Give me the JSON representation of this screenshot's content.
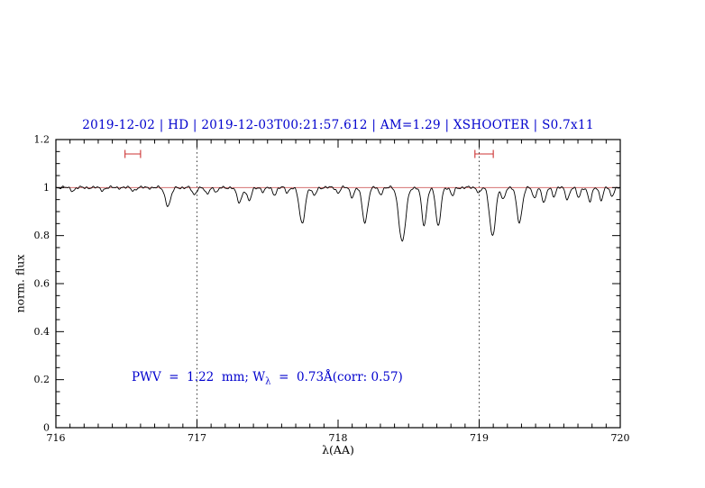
{
  "colors": {
    "accent_blue": "#0000cd",
    "continuum_red": "#cd5c5c",
    "marker_red": "#cc3333",
    "spectrum_black": "#000000",
    "frame_black": "#000000"
  },
  "chart_data": {
    "type": "line",
    "title": "2019-12-02 | HD | 2019-12-03T00:21:57.612 | AM=1.29 | XSHOOTER | S0.7x11",
    "xlabel": "λ(AA)",
    "ylabel": "norm. flux",
    "xlim": [
      716,
      720
    ],
    "ylim": [
      0,
      1.2
    ],
    "grid": false,
    "legend": "none",
    "x_ticks": [
      716,
      717,
      718,
      719,
      720
    ],
    "x_tick_labels": [
      "716",
      "717",
      "718",
      "719",
      "720"
    ],
    "x_minor_step": 0.1,
    "y_ticks": [
      0,
      0.2,
      0.4,
      0.6,
      0.8,
      1,
      1.2
    ],
    "y_tick_labels": [
      "0",
      "0.2",
      "0.4",
      "0.6",
      "0.8",
      "1",
      "1.2"
    ],
    "y_minor_step": 0.05,
    "dotted_vlines": [
      717,
      719
    ],
    "continuum_y": 1.0,
    "interval_markers": [
      {
        "x1": 716.49,
        "x2": 716.6,
        "y": 1.14
      },
      {
        "x1": 718.97,
        "x2": 719.1,
        "y": 1.14
      }
    ],
    "annotation": {
      "pre": "PWV  =  1.22  mm; W",
      "sub": "λ",
      "post": "  =  0.73Å(corr: 0.57)"
    },
    "spectrum_model": {
      "continuum": 1.0,
      "sample_step": 0.005,
      "noise": {
        "amp": 0.0032,
        "freqs": [
          23.7,
          41.3,
          9.1
        ],
        "phases": [
          0.3,
          1.7,
          4.1
        ],
        "weights": [
          1,
          0.6,
          0.8
        ]
      },
      "absorption_lines": [
        {
          "c": 716.12,
          "d": 0.012,
          "s": 0.015
        },
        {
          "c": 716.33,
          "d": 0.01,
          "s": 0.015
        },
        {
          "c": 716.55,
          "d": 0.012,
          "s": 0.015
        },
        {
          "c": 716.795,
          "d": 0.075,
          "s": 0.02
        },
        {
          "c": 716.98,
          "d": 0.03,
          "s": 0.014
        },
        {
          "c": 717.07,
          "d": 0.028,
          "s": 0.014
        },
        {
          "c": 717.14,
          "d": 0.02,
          "s": 0.012
        },
        {
          "c": 717.3,
          "d": 0.062,
          "s": 0.018
        },
        {
          "c": 717.37,
          "d": 0.055,
          "s": 0.016
        },
        {
          "c": 717.47,
          "d": 0.018,
          "s": 0.012
        },
        {
          "c": 717.55,
          "d": 0.028,
          "s": 0.014
        },
        {
          "c": 717.64,
          "d": 0.02,
          "s": 0.012
        },
        {
          "c": 717.745,
          "d": 0.15,
          "s": 0.02
        },
        {
          "c": 717.83,
          "d": 0.035,
          "s": 0.014
        },
        {
          "c": 718.0,
          "d": 0.022,
          "s": 0.012
        },
        {
          "c": 718.1,
          "d": 0.038,
          "s": 0.014
        },
        {
          "c": 718.19,
          "d": 0.145,
          "s": 0.019
        },
        {
          "c": 718.3,
          "d": 0.028,
          "s": 0.013
        },
        {
          "c": 718.455,
          "d": 0.225,
          "s": 0.024
        },
        {
          "c": 718.61,
          "d": 0.16,
          "s": 0.017
        },
        {
          "c": 718.71,
          "d": 0.165,
          "s": 0.017
        },
        {
          "c": 718.81,
          "d": 0.035,
          "s": 0.013
        },
        {
          "c": 719.0,
          "d": 0.022,
          "s": 0.012
        },
        {
          "c": 719.095,
          "d": 0.2,
          "s": 0.021
        },
        {
          "c": 719.17,
          "d": 0.05,
          "s": 0.013
        },
        {
          "c": 719.285,
          "d": 0.145,
          "s": 0.019
        },
        {
          "c": 719.39,
          "d": 0.045,
          "s": 0.013
        },
        {
          "c": 719.46,
          "d": 0.065,
          "s": 0.014
        },
        {
          "c": 719.53,
          "d": 0.035,
          "s": 0.012
        },
        {
          "c": 719.625,
          "d": 0.048,
          "s": 0.014
        },
        {
          "c": 719.705,
          "d": 0.042,
          "s": 0.013
        },
        {
          "c": 719.785,
          "d": 0.058,
          "s": 0.014
        },
        {
          "c": 719.865,
          "d": 0.05,
          "s": 0.013
        },
        {
          "c": 719.94,
          "d": 0.038,
          "s": 0.012
        }
      ]
    }
  }
}
